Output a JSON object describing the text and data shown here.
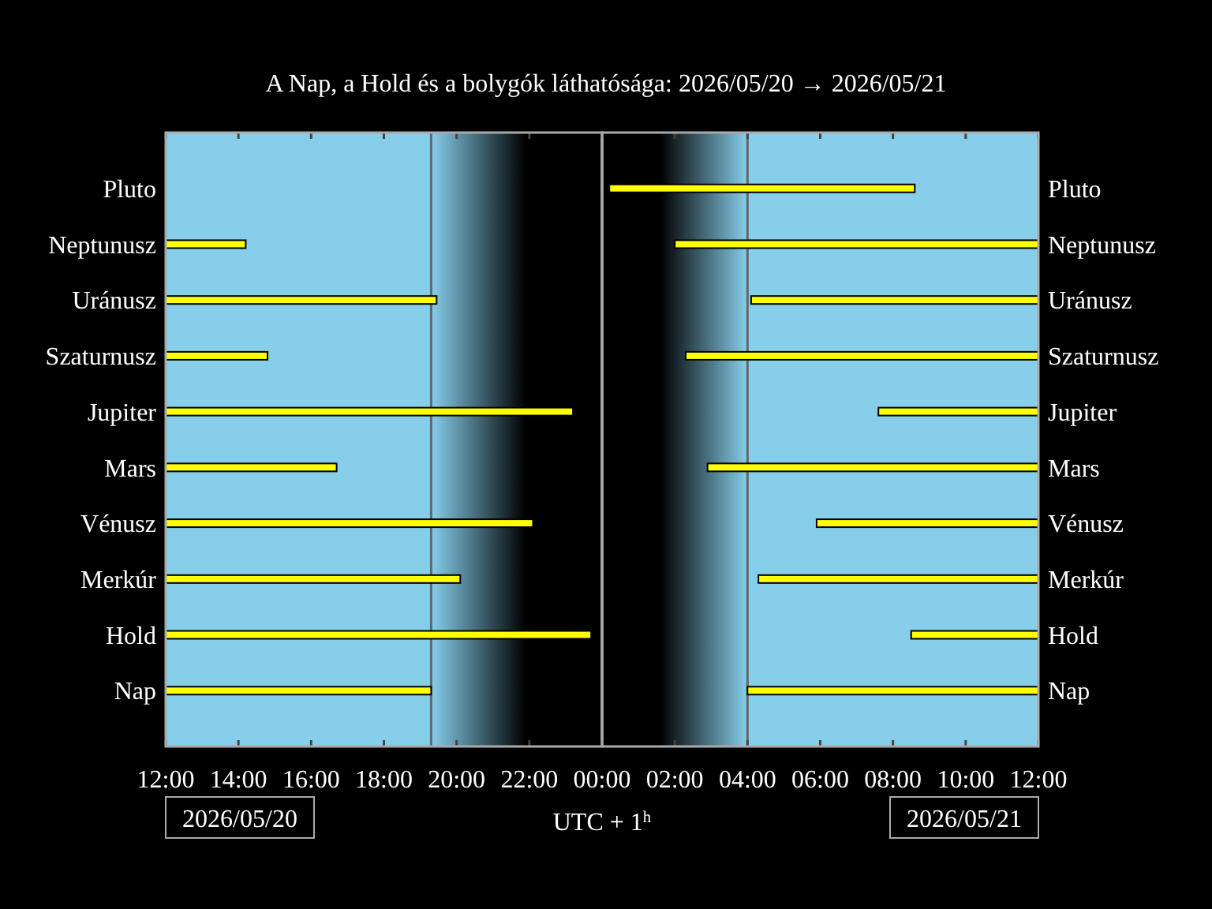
{
  "chart_data": [
    {
      "type": "bar",
      "orientation": "horizontal",
      "title": "A Nap, a Hold és a bolygók láthatósága: 2026/05/20 → 2026/05/21",
      "xlabel": "UTC + 1$^{h}$",
      "categories": [
        "Pluto",
        "Neptunusz",
        "Uránusz",
        "Szaturnusz",
        "Jupiter",
        "Mars",
        "Vénusz",
        "Merkúr",
        "Hold",
        "Nap"
      ],
      "series": [
        {
          "color": "#ffff00",
          "base": [
            null,
            12,
            12,
            12,
            12,
            12,
            12,
            12,
            12,
            12
          ],
          "values": [
            null,
            2.2,
            7.45,
            2.8,
            11.2,
            4.7,
            10.1,
            8.1,
            11.7,
            7.3
          ]
        }
      ],
      "xlim": [
        12,
        24
      ],
      "xticks": [
        {
          "value": 12,
          "label": "12:00"
        },
        {
          "value": 14,
          "label": "14:00"
        },
        {
          "value": 16,
          "label": "16:00"
        },
        {
          "value": 18,
          "label": "18:00"
        },
        {
          "value": 20,
          "label": "20:00"
        },
        {
          "value": 22,
          "label": "22:00"
        }
      ],
      "bands": [
        {
          "axis": "x",
          "from": 12,
          "to": 19.3,
          "color": "#87ceeb"
        },
        {
          "axis": "x",
          "from": 19.3,
          "to": 21.9,
          "color": "#87ceeb"
        }
      ],
      "ref_lines": [
        {
          "axis": "x",
          "value": 19.3,
          "color": "#666666"
        },
        {
          "axis": "x",
          "value": 24,
          "color": "#cccccc"
        }
      ],
      "annotations": [
        "2026/05/20"
      ]
    },
    {
      "type": "bar",
      "orientation": "horizontal",
      "categories": [
        "Pluto",
        "Neptunusz",
        "Uránusz",
        "Szaturnusz",
        "Jupiter",
        "Mars",
        "Vénusz",
        "Merkúr",
        "Hold",
        "Nap"
      ],
      "series": [
        {
          "color": "#ffff00",
          "base": [
            0.2,
            2.0,
            4.1,
            2.3,
            7.6,
            2.9,
            5.9,
            4.3,
            8.5,
            4.0
          ],
          "values": [
            8.4,
            10.0,
            7.9,
            9.7,
            4.4,
            9.1,
            6.1,
            7.7,
            3.5,
            8.0
          ]
        }
      ],
      "xlim": [
        0,
        12
      ],
      "xticks": [
        {
          "value": 0,
          "label": "00:00"
        },
        {
          "value": 2,
          "label": "02:00"
        },
        {
          "value": 4,
          "label": "04:00"
        },
        {
          "value": 6,
          "label": "06:00"
        },
        {
          "value": 8,
          "label": "08:00"
        },
        {
          "value": 10,
          "label": "10:00"
        },
        {
          "value": 12,
          "label": "12:00"
        }
      ],
      "bands": [
        {
          "axis": "x",
          "from": 1.6,
          "to": 4.0,
          "color": "#87ceeb"
        },
        {
          "axis": "x",
          "from": 4.0,
          "to": 12,
          "color": "#87ceeb"
        }
      ],
      "ref_lines": [
        {
          "axis": "x",
          "value": 4.0,
          "color": "#666666"
        }
      ],
      "annotations": [
        "2026/05/21"
      ]
    }
  ]
}
